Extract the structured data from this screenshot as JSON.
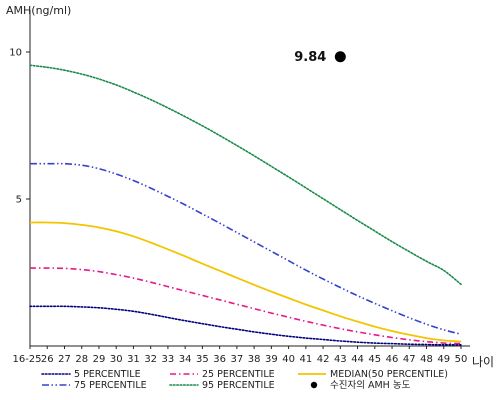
{
  "chart_data": {
    "type": "line",
    "ylabel": "AMH(ng/ml)",
    "xlabel": "나이",
    "ylim": [
      0,
      10
    ],
    "yticks": [
      5,
      10
    ],
    "categories": [
      "16-25",
      "26",
      "27",
      "28",
      "29",
      "30",
      "31",
      "32",
      "33",
      "34",
      "35",
      "36",
      "37",
      "38",
      "39",
      "40",
      "41",
      "42",
      "43",
      "44",
      "45",
      "46",
      "47",
      "48",
      "49",
      "50"
    ],
    "series": [
      {
        "name": "5 PERCENTILE",
        "color": "#000080",
        "dash": "dotted",
        "values": [
          1.35,
          1.35,
          1.35,
          1.33,
          1.3,
          1.25,
          1.18,
          1.08,
          0.97,
          0.86,
          0.76,
          0.66,
          0.57,
          0.48,
          0.4,
          0.33,
          0.27,
          0.22,
          0.17,
          0.13,
          0.1,
          0.08,
          0.06,
          0.05,
          0.04,
          0.04
        ]
      },
      {
        "name": "25 PERCENTILE",
        "color": "#e6198a",
        "dash": "dashdot",
        "values": [
          2.65,
          2.65,
          2.64,
          2.6,
          2.53,
          2.43,
          2.31,
          2.17,
          2.02,
          1.87,
          1.72,
          1.57,
          1.42,
          1.27,
          1.12,
          0.98,
          0.84,
          0.71,
          0.59,
          0.48,
          0.38,
          0.29,
          0.21,
          0.15,
          0.1,
          0.08
        ]
      },
      {
        "name": "MEDIAN(50 PERCENTILE)",
        "color": "#f2c500",
        "dash": "solid",
        "values": [
          4.2,
          4.2,
          4.18,
          4.12,
          4.03,
          3.9,
          3.73,
          3.52,
          3.29,
          3.05,
          2.8,
          2.56,
          2.32,
          2.08,
          1.85,
          1.63,
          1.41,
          1.21,
          1.01,
          0.83,
          0.66,
          0.51,
          0.38,
          0.27,
          0.19,
          0.15
        ]
      },
      {
        "name": "75 PERCENTILE",
        "color": "#3344cc",
        "dash": "dashdotdot",
        "values": [
          6.2,
          6.2,
          6.2,
          6.15,
          6.03,
          5.85,
          5.63,
          5.37,
          5.09,
          4.8,
          4.49,
          4.18,
          3.86,
          3.54,
          3.22,
          2.9,
          2.58,
          2.28,
          1.99,
          1.71,
          1.45,
          1.2,
          0.96,
          0.74,
          0.55,
          0.4
        ]
      },
      {
        "name": "95 PERCENTILE",
        "color": "#1a8a4a",
        "dash": "dotted",
        "values": [
          9.55,
          9.48,
          9.38,
          9.25,
          9.08,
          8.88,
          8.64,
          8.38,
          8.1,
          7.8,
          7.49,
          7.16,
          6.82,
          6.47,
          6.11,
          5.75,
          5.38,
          5.01,
          4.64,
          4.27,
          3.91,
          3.55,
          3.21,
          2.88,
          2.57,
          2.1
        ]
      }
    ],
    "points": [
      {
        "name": "수진자의 AMH 농도",
        "x": "43",
        "y": 9.84,
        "label": "9.84",
        "color": "#000000"
      }
    ],
    "legend_position": "bottom",
    "grid": false
  }
}
